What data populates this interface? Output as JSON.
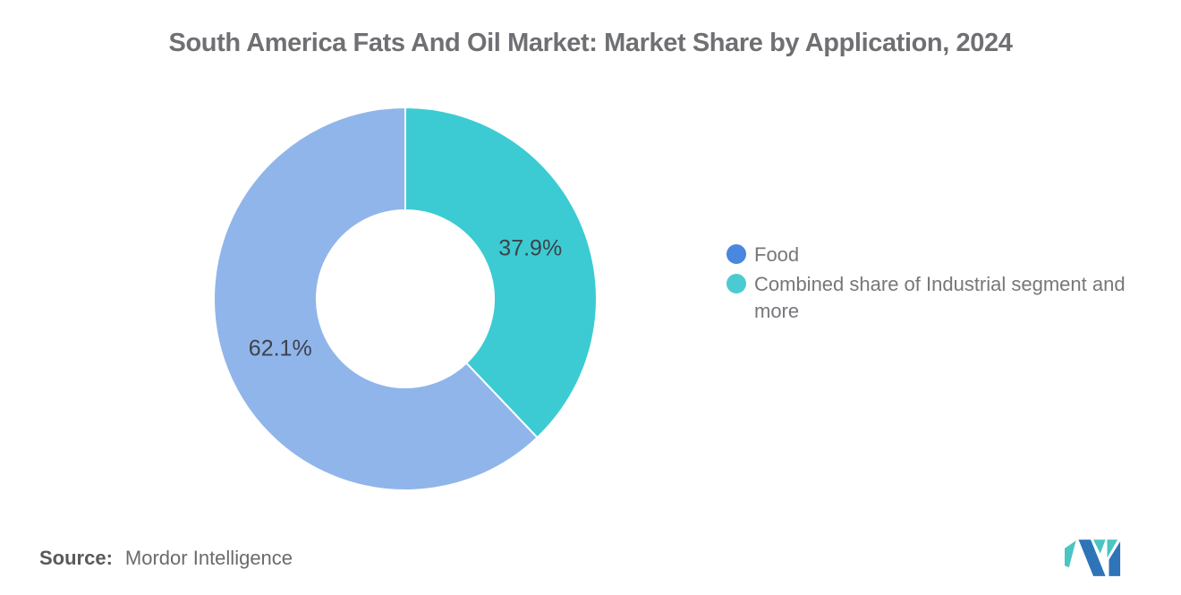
{
  "title": "South America Fats And Oil Market: Market Share by Application, 2024",
  "chart_data": {
    "type": "pie",
    "subtype": "donut",
    "title": "South America Fats And Oil Market: Market Share by Application, 2024",
    "categories": [
      "Food",
      "Combined share of Industrial segment and more"
    ],
    "values": [
      62.1,
      37.9
    ],
    "unit": "%",
    "slice_labels": [
      "62.1%",
      "37.9%"
    ],
    "slice_colors": [
      "#90B5EA",
      "#3CCBD3"
    ],
    "draw_clockwise_from_top": [
      1,
      0
    ],
    "inner_radius_ratio": 0.46,
    "label_radius_ratio": 0.7,
    "legend_position": "right",
    "grid": false
  },
  "legend": {
    "items": [
      {
        "label": "Food",
        "color": "#4A87DE"
      },
      {
        "label": "Combined share of Industrial segment and more",
        "color": "#4BCBD1"
      }
    ]
  },
  "source": {
    "label": "Source:",
    "value": "Mordor Intelligence"
  },
  "logo": {
    "name": "mordor-intelligence-logo",
    "blue": "#2E74B8",
    "teal": "#4BC5C3"
  }
}
